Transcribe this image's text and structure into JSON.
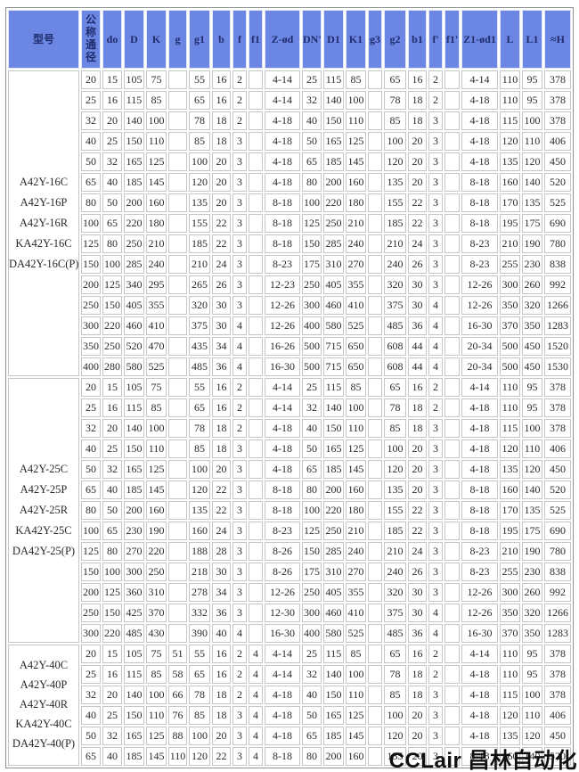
{
  "watermark": "CCLair 昌林自动化",
  "table": {
    "columns": [
      "型号",
      "公称通径",
      "do",
      "D",
      "K",
      "g",
      "g1",
      "b",
      "f",
      "f1",
      "Z-ød",
      "DN'",
      "D1",
      "K1",
      "g3",
      "g2",
      "b1",
      "f'",
      "f1'",
      "Z1-ød1",
      "L",
      "L1",
      "≈H"
    ],
    "groups": [
      {
        "models": [
          "A42Y-16C",
          "A42Y-16P",
          "A42Y-16R",
          "KA42Y-16C",
          "DA42Y-16C(P)"
        ],
        "rows": [
          [
            "20",
            "15",
            "105",
            "75",
            "",
            "55",
            "16",
            "2",
            "",
            "4-14",
            "25",
            "115",
            "85",
            "",
            "65",
            "16",
            "2",
            "",
            "4-14",
            "110",
            "95",
            "378"
          ],
          [
            "25",
            "16",
            "115",
            "85",
            "",
            "65",
            "16",
            "2",
            "",
            "4-14",
            "32",
            "140",
            "100",
            "",
            "78",
            "18",
            "2",
            "",
            "4-18",
            "110",
            "95",
            "378"
          ],
          [
            "32",
            "20",
            "140",
            "100",
            "",
            "78",
            "18",
            "2",
            "",
            "4-18",
            "40",
            "150",
            "110",
            "",
            "85",
            "18",
            "3",
            "",
            "4-18",
            "115",
            "100",
            "378"
          ],
          [
            "40",
            "25",
            "150",
            "110",
            "",
            "85",
            "18",
            "3",
            "",
            "4-18",
            "50",
            "165",
            "125",
            "",
            "100",
            "20",
            "3",
            "",
            "4-18",
            "120",
            "110",
            "406"
          ],
          [
            "50",
            "32",
            "165",
            "125",
            "",
            "100",
            "20",
            "3",
            "",
            "4-18",
            "65",
            "185",
            "145",
            "",
            "120",
            "20",
            "3",
            "",
            "4-18",
            "135",
            "120",
            "450"
          ],
          [
            "65",
            "40",
            "185",
            "145",
            "",
            "120",
            "20",
            "3",
            "",
            "4-18",
            "80",
            "200",
            "160",
            "",
            "135",
            "20",
            "3",
            "",
            "8-18",
            "160",
            "140",
            "520"
          ],
          [
            "80",
            "50",
            "200",
            "160",
            "",
            "135",
            "20",
            "3",
            "",
            "8-18",
            "100",
            "220",
            "180",
            "",
            "155",
            "22",
            "3",
            "",
            "8-18",
            "170",
            "135",
            "525"
          ],
          [
            "100",
            "65",
            "220",
            "180",
            "",
            "155",
            "22",
            "3",
            "",
            "8-18",
            "125",
            "250",
            "210",
            "",
            "185",
            "22",
            "3",
            "",
            "8-18",
            "195",
            "175",
            "690"
          ],
          [
            "125",
            "80",
            "250",
            "210",
            "",
            "185",
            "22",
            "3",
            "",
            "8-18",
            "150",
            "285",
            "240",
            "",
            "210",
            "24",
            "3",
            "",
            "8-23",
            "210",
            "190",
            "780"
          ],
          [
            "150",
            "100",
            "285",
            "240",
            "",
            "210",
            "24",
            "3",
            "",
            "8-23",
            "175",
            "310",
            "270",
            "",
            "240",
            "26",
            "3",
            "",
            "8-23",
            "255",
            "230",
            "838"
          ],
          [
            "200",
            "125",
            "340",
            "295",
            "",
            "265",
            "26",
            "3",
            "",
            "12-23",
            "250",
            "405",
            "355",
            "",
            "320",
            "30",
            "3",
            "",
            "12-26",
            "300",
            "260",
            "992"
          ],
          [
            "250",
            "150",
            "405",
            "355",
            "",
            "320",
            "30",
            "3",
            "",
            "12-26",
            "300",
            "460",
            "410",
            "",
            "375",
            "30",
            "4",
            "",
            "12-26",
            "350",
            "320",
            "1266"
          ],
          [
            "300",
            "220",
            "460",
            "410",
            "",
            "375",
            "30",
            "4",
            "",
            "12-26",
            "400",
            "580",
            "525",
            "",
            "485",
            "36",
            "4",
            "",
            "16-30",
            "370",
            "350",
            "1283"
          ],
          [
            "350",
            "250",
            "520",
            "470",
            "",
            "435",
            "34",
            "4",
            "",
            "16-26",
            "500",
            "715",
            "650",
            "",
            "608",
            "44",
            "4",
            "",
            "20-34",
            "500",
            "450",
            "1520"
          ],
          [
            "400",
            "280",
            "580",
            "525",
            "",
            "485",
            "36",
            "4",
            "",
            "16-30",
            "500",
            "715",
            "650",
            "",
            "608",
            "44",
            "4",
            "",
            "20-34",
            "500",
            "450",
            "1530"
          ]
        ]
      },
      {
        "models": [
          "A42Y-25C",
          "A42Y-25P",
          "A42Y-25R",
          "KA42Y-25C",
          "DA42Y-25(P)"
        ],
        "rows": [
          [
            "20",
            "15",
            "105",
            "75",
            "",
            "55",
            "16",
            "2",
            "",
            "4-14",
            "25",
            "115",
            "85",
            "",
            "65",
            "16",
            "2",
            "",
            "4-14",
            "110",
            "95",
            "378"
          ],
          [
            "25",
            "16",
            "115",
            "85",
            "",
            "65",
            "16",
            "2",
            "",
            "4-14",
            "32",
            "140",
            "100",
            "",
            "78",
            "18",
            "2",
            "",
            "4-18",
            "110",
            "95",
            "378"
          ],
          [
            "32",
            "20",
            "140",
            "100",
            "",
            "78",
            "18",
            "2",
            "",
            "4-18",
            "40",
            "150",
            "110",
            "",
            "85",
            "18",
            "3",
            "",
            "4-18",
            "115",
            "100",
            "378"
          ],
          [
            "40",
            "25",
            "150",
            "110",
            "",
            "85",
            "18",
            "3",
            "",
            "4-18",
            "50",
            "165",
            "125",
            "",
            "100",
            "20",
            "3",
            "",
            "4-18",
            "120",
            "110",
            "406"
          ],
          [
            "50",
            "32",
            "165",
            "125",
            "",
            "100",
            "20",
            "3",
            "",
            "4-18",
            "65",
            "185",
            "145",
            "",
            "120",
            "20",
            "3",
            "",
            "4-18",
            "135",
            "120",
            "450"
          ],
          [
            "65",
            "40",
            "185",
            "145",
            "",
            "120",
            "22",
            "3",
            "",
            "8-18",
            "80",
            "200",
            "160",
            "",
            "135",
            "20",
            "3",
            "",
            "8-18",
            "160",
            "140",
            "520"
          ],
          [
            "80",
            "50",
            "200",
            "160",
            "",
            "135",
            "22",
            "3",
            "",
            "8-18",
            "100",
            "220",
            "180",
            "",
            "155",
            "22",
            "3",
            "",
            "8-18",
            "170",
            "135",
            "525"
          ],
          [
            "100",
            "65",
            "230",
            "190",
            "",
            "160",
            "24",
            "3",
            "",
            "8-23",
            "125",
            "250",
            "210",
            "",
            "185",
            "22",
            "3",
            "",
            "8-18",
            "195",
            "175",
            "690"
          ],
          [
            "125",
            "80",
            "270",
            "220",
            "",
            "188",
            "28",
            "3",
            "",
            "8-26",
            "150",
            "285",
            "240",
            "",
            "210",
            "24",
            "3",
            "",
            "8-23",
            "210",
            "190",
            "780"
          ],
          [
            "150",
            "100",
            "300",
            "250",
            "",
            "218",
            "30",
            "3",
            "",
            "8-26",
            "175",
            "310",
            "270",
            "",
            "240",
            "26",
            "3",
            "",
            "8-23",
            "255",
            "230",
            "838"
          ],
          [
            "200",
            "125",
            "360",
            "310",
            "",
            "278",
            "34",
            "3",
            "",
            "12-26",
            "250",
            "405",
            "355",
            "",
            "320",
            "30",
            "3",
            "",
            "12-26",
            "300",
            "260",
            "992"
          ],
          [
            "250",
            "150",
            "425",
            "370",
            "",
            "332",
            "36",
            "3",
            "",
            "12-30",
            "300",
            "460",
            "410",
            "",
            "375",
            "30",
            "4",
            "",
            "12-26",
            "350",
            "320",
            "1266"
          ],
          [
            "300",
            "220",
            "485",
            "430",
            "",
            "390",
            "40",
            "4",
            "",
            "16-30",
            "400",
            "580",
            "525",
            "",
            "485",
            "36",
            "4",
            "",
            "16-30",
            "370",
            "350",
            "1283"
          ]
        ]
      },
      {
        "models": [
          "A42Y-40C",
          "A42Y-40P",
          "A42Y-40R",
          "KA42Y-40C",
          "DA42Y-40(P)"
        ],
        "rows": [
          [
            "20",
            "15",
            "105",
            "75",
            "51",
            "55",
            "16",
            "2",
            "4",
            "4-14",
            "25",
            "115",
            "85",
            "",
            "65",
            "16",
            "2",
            "",
            "4-14",
            "110",
            "95",
            "378"
          ],
          [
            "25",
            "16",
            "115",
            "85",
            "58",
            "65",
            "16",
            "2",
            "4",
            "4-14",
            "32",
            "140",
            "100",
            "",
            "78",
            "18",
            "2",
            "",
            "4-18",
            "110",
            "95",
            "378"
          ],
          [
            "32",
            "20",
            "140",
            "100",
            "66",
            "78",
            "18",
            "2",
            "4",
            "4-18",
            "40",
            "150",
            "110",
            "",
            "85",
            "18",
            "3",
            "",
            "4-18",
            "115",
            "100",
            "378"
          ],
          [
            "40",
            "25",
            "150",
            "110",
            "76",
            "85",
            "18",
            "3",
            "4",
            "4-18",
            "50",
            "165",
            "125",
            "",
            "100",
            "20",
            "3",
            "",
            "4-18",
            "120",
            "110",
            "406"
          ],
          [
            "50",
            "32",
            "165",
            "125",
            "88",
            "100",
            "20",
            "3",
            "4",
            "4-18",
            "65",
            "185",
            "145",
            "",
            "120",
            "20",
            "3",
            "",
            "4-18",
            "135",
            "120",
            "450"
          ],
          [
            "65",
            "40",
            "185",
            "145",
            "110",
            "120",
            "22",
            "3",
            "4",
            "8-18",
            "80",
            "200",
            "160",
            "",
            "135",
            "20",
            "3",
            "",
            "8-18",
            "160",
            "140",
            "520"
          ]
        ]
      }
    ]
  },
  "colors": {
    "header_bg": "#6c86e3",
    "header_text": "#1f2d6e",
    "cell_border": "#c6c6c6",
    "table_border": "#909090",
    "cell_text": "#2a2a2a"
  }
}
